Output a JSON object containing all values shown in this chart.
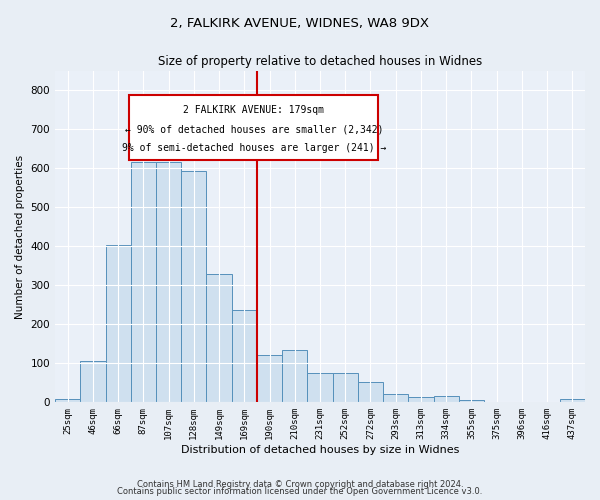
{
  "title": "2, FALKIRK AVENUE, WIDNES, WA8 9DX",
  "subtitle": "Size of property relative to detached houses in Widnes",
  "xlabel": "Distribution of detached houses by size in Widnes",
  "ylabel": "Number of detached properties",
  "bar_labels": [
    "25sqm",
    "46sqm",
    "66sqm",
    "87sqm",
    "107sqm",
    "128sqm",
    "149sqm",
    "169sqm",
    "190sqm",
    "210sqm",
    "231sqm",
    "252sqm",
    "272sqm",
    "293sqm",
    "313sqm",
    "334sqm",
    "355sqm",
    "375sqm",
    "396sqm",
    "416sqm",
    "437sqm"
  ],
  "bar_values": [
    8,
    106,
    403,
    616,
    615,
    592,
    328,
    236,
    120,
    133,
    75,
    75,
    52,
    22,
    14,
    15,
    7,
    0,
    0,
    0,
    8
  ],
  "bar_color": "#cfe0ef",
  "bar_edge_color": "#5590bb",
  "marker_line_color": "#cc0000",
  "annotation_line1": "2 FALKIRK AVENUE: 179sqm",
  "annotation_line2": "← 90% of detached houses are smaller (2,342)",
  "annotation_line3": "9% of semi-detached houses are larger (241) →",
  "ylim": [
    0,
    850
  ],
  "yticks": [
    0,
    100,
    200,
    300,
    400,
    500,
    600,
    700,
    800
  ],
  "footer_line1": "Contains HM Land Registry data © Crown copyright and database right 2024.",
  "footer_line2": "Contains public sector information licensed under the Open Government Licence v3.0.",
  "bg_color": "#e8eef5",
  "plot_bg_color": "#eaf0f8"
}
